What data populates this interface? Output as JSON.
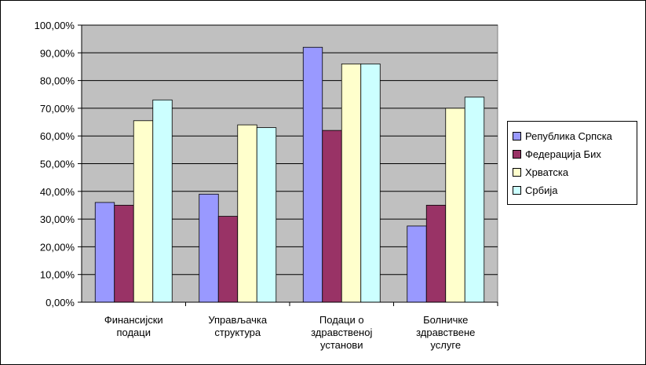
{
  "chart_data": {
    "type": "bar",
    "title": "",
    "xlabel": "",
    "ylabel": "",
    "ylim": [
      0,
      100
    ],
    "ytick_step": 10,
    "ytick_labels": [
      "0,00%",
      "10,00%",
      "20,00%",
      "30,00%",
      "40,00%",
      "50,00%",
      "60,00%",
      "70,00%",
      "80,00%",
      "90,00%",
      "100,00%"
    ],
    "categories": [
      [
        "Финансијски",
        "подаци"
      ],
      [
        "Управљачка",
        "структура"
      ],
      [
        "Подаци о",
        "здравственој",
        "установи"
      ],
      [
        "Болничке",
        "здравствене",
        "услуге"
      ]
    ],
    "series": [
      {
        "name": "Република Српска",
        "color": "#9999ff",
        "values": [
          36,
          39,
          92,
          27.5
        ]
      },
      {
        "name": "Федерација Бих",
        "color": "#993366",
        "values": [
          35,
          31,
          62,
          35
        ]
      },
      {
        "name": "Хрватска",
        "color": "#ffffcc",
        "values": [
          65.5,
          64,
          86,
          70
        ]
      },
      {
        "name": "Србија",
        "color": "#ccffff",
        "values": [
          73,
          63,
          86,
          74
        ]
      }
    ],
    "plot_background": "#c0c0c0",
    "grid": true,
    "legend_position": "right"
  }
}
